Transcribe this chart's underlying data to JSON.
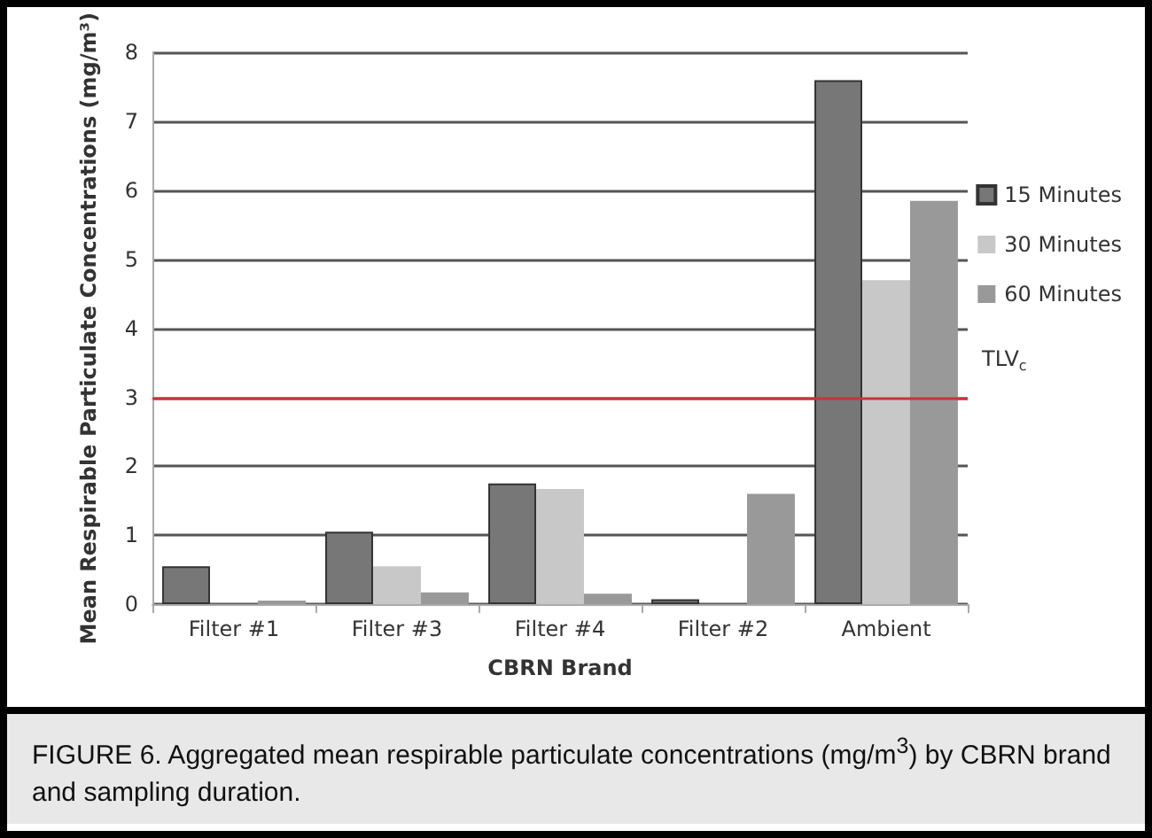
{
  "chart_data": {
    "type": "bar",
    "categories": [
      "Filter #1",
      "Filter #3",
      "Filter #4",
      "Filter #2",
      "Ambient"
    ],
    "series": [
      {
        "name": "15 Minutes",
        "color": "#777777",
        "values": [
          0.55,
          1.05,
          1.75,
          0.07,
          7.6
        ]
      },
      {
        "name": "30 Minutes",
        "color": "#c8c8c8",
        "values": [
          null,
          0.55,
          1.67,
          null,
          4.7
        ]
      },
      {
        "name": "60 Minutes",
        "color": "#999999",
        "values": [
          0.05,
          0.17,
          0.15,
          1.6,
          5.85
        ]
      }
    ],
    "xlabel": "CBRN Brand",
    "ylabel": "Mean Respirable Particulate Concentrations (mg/m³)",
    "ylim": [
      0,
      8
    ],
    "yticks": [
      0,
      1,
      2,
      3,
      4,
      5,
      6,
      7,
      8
    ],
    "grid": "y",
    "legend": "right",
    "ref_lines": [
      {
        "axis": "y",
        "value": 3,
        "label": "TLV$_{c}$",
        "color": "#cc3333"
      }
    ],
    "annotations": [
      "FIGURE 6.   Aggregated mean respirable particulate concentrations (mg/m$^{3}$) by CBRN brand and sampling duration."
    ]
  }
}
